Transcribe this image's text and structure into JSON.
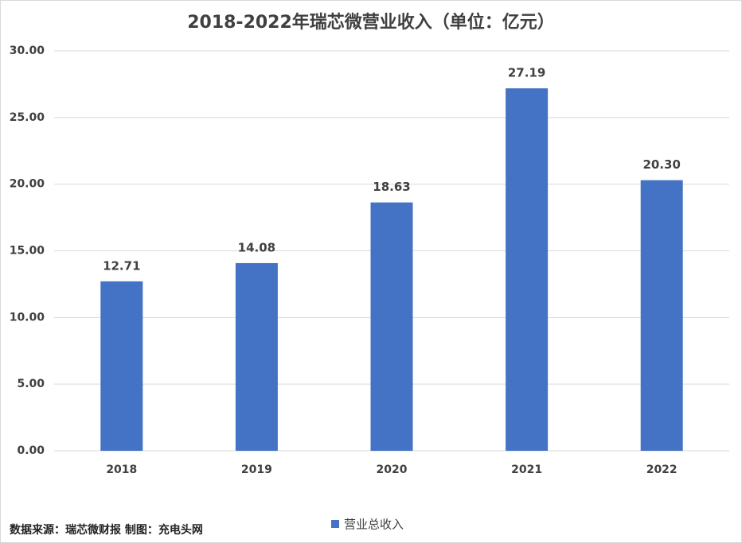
{
  "chart_data": {
    "type": "bar",
    "title": "2018-2022年瑞芯微营业收入（单位：亿元）",
    "categories": [
      "2018",
      "2019",
      "2020",
      "2021",
      "2022"
    ],
    "series": [
      {
        "name": "营业总收入",
        "color": "#4472c4",
        "values": [
          12.71,
          14.08,
          18.63,
          27.19,
          20.3
        ],
        "value_labels": [
          "12.71",
          "14.08",
          "18.63",
          "27.19",
          "20.30"
        ]
      }
    ],
    "ylim": [
      0,
      30
    ],
    "yticks": [
      {
        "value": 0,
        "label": "0.00"
      },
      {
        "value": 5,
        "label": "5.00"
      },
      {
        "value": 10,
        "label": "10.00"
      },
      {
        "value": 15,
        "label": "15.00"
      },
      {
        "value": 20,
        "label": "20.00"
      },
      {
        "value": 25,
        "label": "25.00"
      },
      {
        "value": 30,
        "label": "30.00"
      }
    ],
    "grid": true,
    "legend": "bottom",
    "source": "数据来源：瑞芯微财报 制图：充电头网"
  }
}
